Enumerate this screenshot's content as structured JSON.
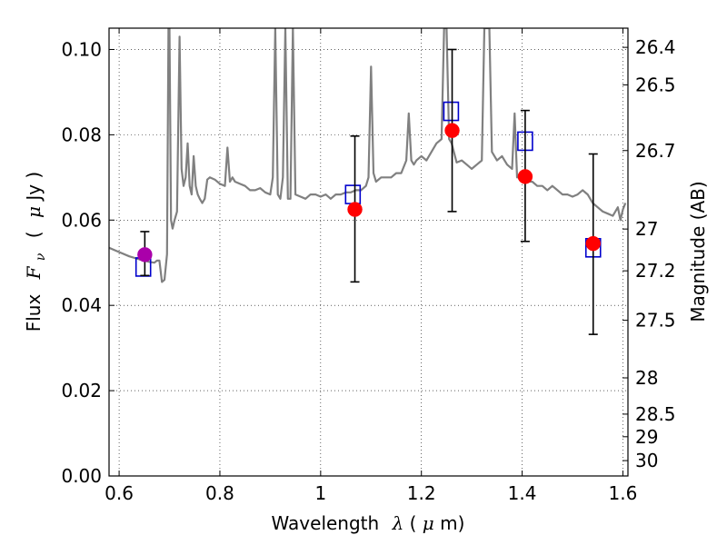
{
  "chart_data": {
    "type": "scatter",
    "xlabel": "Wavelength",
    "xlabel_symbol": "λ",
    "xlabel_unit_open": " (",
    "xlabel_unit_mu": "μ",
    "xlabel_unit_rest": "m)",
    "ylabel_prefix": "Flux",
    "ylabel_symbol": "F",
    "ylabel_subscript": "ν",
    "ylabel_unit_open": "(",
    "ylabel_unit_mu": "μ",
    "ylabel_unit_rest": "Jy )",
    "y2label": "Magnitude (AB)",
    "xlim": [
      0.58,
      1.61
    ],
    "ylim": [
      0.0,
      0.105
    ],
    "grid": true,
    "x_ticks": [
      0.6,
      0.8,
      1.0,
      1.2,
      1.4,
      1.6
    ],
    "x_tick_labels": [
      "0.6",
      "0.8",
      "1",
      "1.2",
      "1.4",
      "1.6"
    ],
    "y_ticks": [
      0.0,
      0.02,
      0.04,
      0.06,
      0.08,
      0.1
    ],
    "y_tick_labels": [
      "0.00",
      "0.02",
      "0.04",
      "0.06",
      "0.08",
      "0.10"
    ],
    "y2_ticks": [
      {
        "label": "26.4",
        "flux": 0.1005
      },
      {
        "label": "26.5",
        "flux": 0.0917
      },
      {
        "label": "26.7",
        "flux": 0.0763
      },
      {
        "label": "27",
        "flux": 0.0579
      },
      {
        "label": "27.2",
        "flux": 0.0481
      },
      {
        "label": "27.5",
        "flux": 0.0365
      },
      {
        "label": "28",
        "flux": 0.023
      },
      {
        "label": "28.5",
        "flux": 0.0145
      },
      {
        "label": "29",
        "flux": 0.0092
      },
      {
        "label": "30",
        "flux": 0.0036
      }
    ],
    "series": [
      {
        "kind": "line",
        "color": "#808080",
        "x": [
          0.58,
          0.6,
          0.62,
          0.64,
          0.65,
          0.66,
          0.67,
          0.675,
          0.68,
          0.685,
          0.69,
          0.695,
          0.698,
          0.7,
          0.703,
          0.706,
          0.71,
          0.715,
          0.72,
          0.724,
          0.728,
          0.732,
          0.736,
          0.74,
          0.744,
          0.748,
          0.752,
          0.756,
          0.76,
          0.765,
          0.77,
          0.775,
          0.78,
          0.79,
          0.8,
          0.81,
          0.815,
          0.82,
          0.825,
          0.83,
          0.84,
          0.85,
          0.86,
          0.87,
          0.88,
          0.89,
          0.9,
          0.905,
          0.91,
          0.915,
          0.92,
          0.925,
          0.93,
          0.935,
          0.94,
          0.945,
          0.95,
          0.96,
          0.97,
          0.98,
          0.99,
          1.0,
          1.01,
          1.02,
          1.03,
          1.04,
          1.05,
          1.06,
          1.07,
          1.08,
          1.09,
          1.095,
          1.1,
          1.105,
          1.11,
          1.12,
          1.13,
          1.14,
          1.15,
          1.16,
          1.17,
          1.175,
          1.18,
          1.185,
          1.19,
          1.2,
          1.21,
          1.22,
          1.23,
          1.24,
          1.245,
          1.25,
          1.255,
          1.26,
          1.27,
          1.28,
          1.29,
          1.3,
          1.31,
          1.32,
          1.325,
          1.33,
          1.335,
          1.34,
          1.35,
          1.36,
          1.37,
          1.38,
          1.385,
          1.39,
          1.4,
          1.41,
          1.42,
          1.43,
          1.44,
          1.45,
          1.46,
          1.47,
          1.48,
          1.49,
          1.5,
          1.51,
          1.52,
          1.53,
          1.54,
          1.55,
          1.56,
          1.57,
          1.58,
          1.59,
          1.595,
          1.6,
          1.605
        ],
        "y": [
          0.0535,
          0.0525,
          0.0515,
          0.0508,
          0.0505,
          0.0502,
          0.05,
          0.0505,
          0.0505,
          0.0455,
          0.046,
          0.052,
          0.105,
          0.105,
          0.06,
          0.058,
          0.06,
          0.062,
          0.103,
          0.072,
          0.068,
          0.07,
          0.078,
          0.068,
          0.066,
          0.075,
          0.068,
          0.066,
          0.065,
          0.064,
          0.065,
          0.0695,
          0.07,
          0.0695,
          0.0685,
          0.068,
          0.077,
          0.069,
          0.07,
          0.069,
          0.0685,
          0.068,
          0.067,
          0.067,
          0.0675,
          0.0665,
          0.066,
          0.07,
          0.105,
          0.066,
          0.065,
          0.07,
          0.105,
          0.065,
          0.065,
          0.105,
          0.066,
          0.0655,
          0.065,
          0.066,
          0.066,
          0.0655,
          0.066,
          0.065,
          0.066,
          0.066,
          0.0665,
          0.0665,
          0.067,
          0.067,
          0.068,
          0.07,
          0.096,
          0.071,
          0.069,
          0.07,
          0.07,
          0.07,
          0.071,
          0.071,
          0.074,
          0.085,
          0.074,
          0.073,
          0.074,
          0.075,
          0.074,
          0.076,
          0.078,
          0.079,
          0.105,
          0.105,
          0.079,
          0.078,
          0.0735,
          0.074,
          0.073,
          0.072,
          0.073,
          0.074,
          0.105,
          0.105,
          0.105,
          0.076,
          0.074,
          0.075,
          0.073,
          0.072,
          0.085,
          0.07,
          0.07,
          0.069,
          0.069,
          0.068,
          0.068,
          0.067,
          0.068,
          0.067,
          0.066,
          0.066,
          0.0655,
          0.066,
          0.067,
          0.066,
          0.064,
          0.063,
          0.062,
          0.0615,
          0.061,
          0.063,
          0.06,
          0.0625,
          0.064
        ]
      },
      {
        "kind": "boxes",
        "color": "#0000cc",
        "x": [
          0.648,
          1.064,
          1.259,
          1.406,
          1.541
        ],
        "y": [
          0.049,
          0.066,
          0.0855,
          0.0785,
          0.0535
        ]
      },
      {
        "kind": "errorbars",
        "color": "#000000",
        "x": [
          0.651,
          1.068,
          1.261,
          1.406,
          1.541
        ],
        "lo": [
          0.047,
          0.0455,
          0.062,
          0.055,
          0.0332
        ],
        "hi": [
          0.0573,
          0.0797,
          0.1,
          0.0857,
          0.0755
        ]
      },
      {
        "kind": "points",
        "color": "#ff0000",
        "x": [
          1.068,
          1.261,
          1.406,
          1.541
        ],
        "y": [
          0.0625,
          0.081,
          0.0702,
          0.0545
        ]
      },
      {
        "kind": "points",
        "color": "#aa00aa",
        "x": [
          0.651
        ],
        "y": [
          0.0519
        ]
      }
    ]
  }
}
